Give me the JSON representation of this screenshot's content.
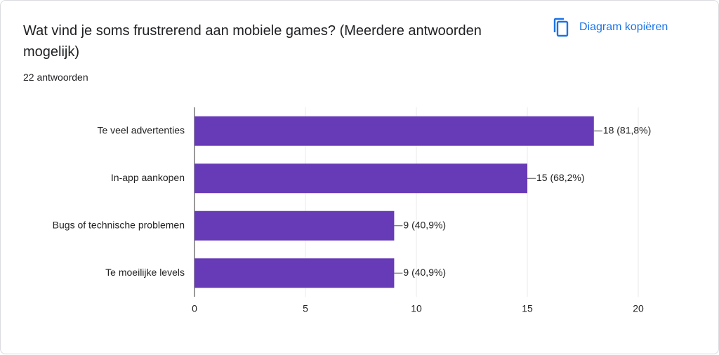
{
  "chart_data": {
    "type": "hbar",
    "title": "Wat vind je soms frustrerend aan mobiele games? (Meerdere antwoorden mogelijk)",
    "subtitle": "22 antwoorden",
    "categories": [
      "Te veel advertenties",
      "In-app aankopen",
      "Bugs of technische problemen",
      "Te moeilijke levels"
    ],
    "values": [
      18,
      15,
      9,
      9
    ],
    "value_labels": [
      "18 (81,8%)",
      "15 (68,2%)",
      "9 (40,9%)",
      "9 (40,9%)"
    ],
    "color": "#673ab7",
    "xlim": [
      0,
      20
    ],
    "xticks": [
      0,
      5,
      10,
      15,
      20
    ],
    "grid": true
  },
  "copy_button": "Diagram kopiëren"
}
